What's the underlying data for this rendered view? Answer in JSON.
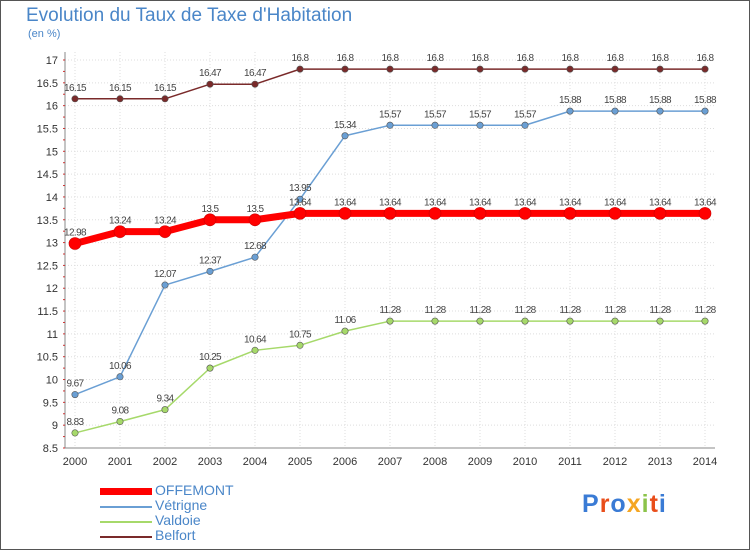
{
  "title": "Evolution du Taux de Taxe d'Habitation",
  "unit_label": "(en %)",
  "logo_text": "Proxiti",
  "logo_colors": [
    "#3a7bd5",
    "#e94e1b",
    "#3a7bd5",
    "#f5a623",
    "#8bc34a",
    "#e94e1b",
    "#3a7bd5"
  ],
  "chart_data": {
    "type": "line",
    "x": [
      "2000",
      "2001",
      "2002",
      "2003",
      "2004",
      "2005",
      "2006",
      "2007",
      "2008",
      "2009",
      "2010",
      "2011",
      "2012",
      "2013",
      "2014"
    ],
    "ylim": [
      8.5,
      17
    ],
    "yticks": [
      "8.5",
      "9",
      "9.5",
      "10",
      "10.5",
      "11",
      "11.5",
      "12",
      "12.5",
      "13",
      "13.5",
      "14",
      "14.5",
      "15",
      "15.5",
      "16",
      "16.5",
      "17"
    ],
    "grid": true,
    "legend_position": "bottom-left",
    "series": [
      {
        "name": "OFFEMONT",
        "color": "#ff0000",
        "width": 7,
        "values": [
          12.98,
          13.24,
          13.24,
          13.5,
          13.5,
          13.64,
          13.64,
          13.64,
          13.64,
          13.64,
          13.64,
          13.64,
          13.64,
          13.64,
          13.64
        ],
        "labels": [
          "12.98",
          "13.24",
          "13.24",
          "13.5",
          "13.5",
          "13.64",
          "13.64",
          "13.64",
          "13.64",
          "13.64",
          "13.64",
          "13.64",
          "13.64",
          "13.64",
          "13.64"
        ]
      },
      {
        "name": "Vétrigne",
        "color": "#6a9fd4",
        "width": 1.5,
        "values": [
          9.67,
          10.06,
          12.07,
          12.37,
          12.68,
          13.95,
          15.34,
          15.57,
          15.57,
          15.57,
          15.57,
          15.88,
          15.88,
          15.88,
          15.88
        ],
        "labels": [
          "9.67",
          "10.06",
          "12.07",
          "12.37",
          "12.68",
          "13.95",
          "15.34",
          "15.57",
          "15.57",
          "15.57",
          "15.57",
          "15.88",
          "15.88",
          "15.88",
          "15.88"
        ]
      },
      {
        "name": "Valdoie",
        "color": "#a6d96a",
        "width": 1.5,
        "values": [
          8.83,
          9.08,
          9.34,
          10.25,
          10.64,
          10.75,
          11.06,
          11.28,
          11.28,
          11.28,
          11.28,
          11.28,
          11.28,
          11.28,
          11.28
        ],
        "labels": [
          "8.83",
          "9.08",
          "9.34",
          "10.25",
          "10.64",
          "10.75",
          "11.06",
          "11.28",
          "11.28",
          "11.28",
          "11.28",
          "11.28",
          "11.28",
          "11.28",
          "11.28"
        ]
      },
      {
        "name": "Belfort",
        "color": "#7a2a2a",
        "width": 1.5,
        "values": [
          16.15,
          16.15,
          16.15,
          16.47,
          16.47,
          16.8,
          16.8,
          16.8,
          16.8,
          16.8,
          16.8,
          16.8,
          16.8,
          16.8,
          16.8
        ],
        "labels": [
          "16.15",
          "16.15",
          "16.15",
          "16.47",
          "16.47",
          "16.8",
          "16.8",
          "16.8",
          "16.8",
          "16.8",
          "16.8",
          "16.8",
          "16.8",
          "16.8",
          "16.8"
        ]
      }
    ]
  }
}
